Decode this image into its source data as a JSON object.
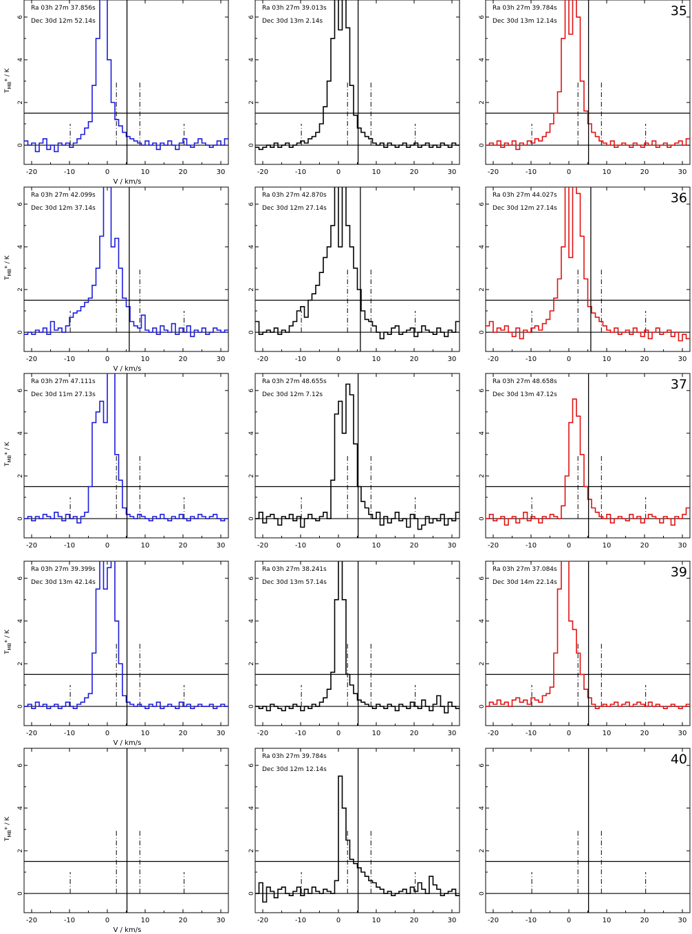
{
  "figure": {
    "x_axis_label": "V / km/s",
    "y_axis_label_main": "T",
    "y_axis_label_sub": "MB",
    "y_axis_label_rest": "* / K"
  },
  "axes_common": {
    "xlim": [
      -22,
      32
    ],
    "ylim": [
      -0.9,
      6.8
    ],
    "xticks": [
      -20,
      -10,
      0,
      10,
      20,
      30
    ],
    "yticks": [
      0,
      2,
      4,
      6
    ],
    "hlines": [
      0,
      1.5
    ],
    "dashdot_tall_x": [
      2.4,
      8.6
    ],
    "dashdot_tall_top": 3.0,
    "dashdot_short_x": [
      -9.8,
      20.3
    ],
    "dashdot_short_top": 1.0
  },
  "colors": {
    "left": "#1a1adc",
    "middle": "#000000",
    "right": "#e01010"
  },
  "chart_data": [
    {
      "type": "line",
      "row": 1,
      "col": 1,
      "row_number": "",
      "ra": "Ra 03h 27m 37.856s",
      "dec": "Dec 30d 12m 52.14s",
      "vline": 5.2,
      "x_start": -22,
      "step": 1,
      "values": [
        0.2,
        0.0,
        0.1,
        -0.3,
        0.1,
        0.3,
        -0.2,
        0.0,
        -0.3,
        0.1,
        0.0,
        0.1,
        -0.1,
        0.1,
        0.3,
        0.5,
        0.8,
        1.1,
        2.8,
        5.0,
        7.0,
        6.9,
        4.0,
        2.0,
        1.2,
        0.9,
        0.6,
        0.4,
        0.3,
        0.2,
        0.1,
        0.0,
        0.2,
        0.0,
        0.1,
        -0.2,
        0.1,
        0.0,
        0.2,
        0.0,
        -0.2,
        0.1,
        0.3,
        0.0,
        -0.1,
        0.1,
        0.3,
        0.1,
        0.0,
        -0.1,
        0.0,
        0.2,
        0.0,
        0.3
      ]
    },
    {
      "type": "line",
      "row": 1,
      "col": 2,
      "row_number": "",
      "ra": "Ra 03h 27m 39.013s",
      "dec": "Dec 30d 13m  2.14s",
      "vline": 5.2,
      "x_start": -22,
      "step": 1,
      "values": [
        -0.1,
        -0.2,
        -0.1,
        0.0,
        -0.1,
        0.1,
        -0.1,
        0.0,
        0.1,
        -0.1,
        0.0,
        0.1,
        0.2,
        0.1,
        0.3,
        0.4,
        0.6,
        1.0,
        1.8,
        3.0,
        5.0,
        7.0,
        5.4,
        8.3,
        5.5,
        2.8,
        1.4,
        0.8,
        0.6,
        0.4,
        0.3,
        0.1,
        0.0,
        0.1,
        -0.1,
        0.1,
        0.0,
        -0.1,
        0.0,
        0.1,
        -0.1,
        0.0,
        0.1,
        -0.1,
        0.0,
        0.1,
        -0.1,
        0.0,
        -0.1,
        0.1,
        0.0,
        -0.1,
        0.1,
        0.0
      ]
    },
    {
      "type": "line",
      "row": 1,
      "col": 3,
      "row_number": "35",
      "ra": "Ra 03h 27m 39.784s",
      "dec": "Dec 30d 13m 12.14s",
      "vline": 5.2,
      "x_start": -22,
      "step": 1,
      "values": [
        0.0,
        0.1,
        0.0,
        0.2,
        -0.1,
        0.1,
        0.0,
        0.2,
        -0.2,
        0.1,
        0.0,
        0.2,
        0.1,
        0.3,
        0.2,
        0.4,
        0.6,
        1.0,
        1.5,
        2.5,
        5.0,
        7.0,
        5.2,
        8.0,
        6.0,
        3.0,
        1.6,
        1.0,
        0.6,
        0.4,
        0.2,
        0.1,
        0.0,
        0.2,
        -0.1,
        0.0,
        0.1,
        0.0,
        -0.1,
        0.1,
        0.0,
        -0.1,
        0.1,
        0.0,
        0.2,
        -0.1,
        0.0,
        0.1,
        -0.1,
        0.0,
        0.1,
        0.2,
        0.0,
        0.3
      ]
    },
    {
      "type": "line",
      "row": 2,
      "col": 1,
      "row_number": "",
      "ra": "Ra 03h 27m 42.099s",
      "dec": "Dec 30d 12m 37.14s",
      "vline": 5.8,
      "x_start": -22,
      "step": 1,
      "values": [
        -0.1,
        0.0,
        -0.1,
        0.1,
        0.0,
        0.2,
        -0.1,
        0.5,
        0.1,
        0.2,
        0.0,
        0.3,
        0.7,
        0.9,
        1.0,
        1.2,
        1.4,
        1.6,
        2.2,
        3.0,
        4.5,
        7.0,
        6.8,
        4.0,
        4.4,
        3.0,
        1.6,
        1.2,
        0.5,
        0.3,
        0.2,
        0.8,
        0.1,
        0.0,
        0.2,
        -0.1,
        0.3,
        0.1,
        0.0,
        0.4,
        -0.1,
        0.2,
        0.0,
        0.3,
        -0.2,
        0.1,
        0.0,
        0.2,
        -0.1,
        0.0,
        0.2,
        0.1,
        0.0,
        0.1
      ]
    },
    {
      "type": "line",
      "row": 2,
      "col": 2,
      "row_number": "",
      "ra": "Ra 03h 27m 42.870s",
      "dec": "Dec 30d 12m 27.14s",
      "vline": 5.8,
      "x_start": -22,
      "step": 1,
      "values": [
        0.5,
        -0.1,
        0.0,
        0.1,
        0.0,
        0.2,
        -0.1,
        0.1,
        0.0,
        0.3,
        0.5,
        1.0,
        1.2,
        0.7,
        1.5,
        1.8,
        2.2,
        2.8,
        3.5,
        4.0,
        5.0,
        7.0,
        4.0,
        7.0,
        5.0,
        4.0,
        3.0,
        2.0,
        1.0,
        0.6,
        0.5,
        0.3,
        0.0,
        -0.3,
        0.0,
        -0.1,
        0.2,
        0.3,
        -0.1,
        0.0,
        0.1,
        0.2,
        -0.2,
        0.0,
        0.3,
        0.1,
        0.0,
        -0.1,
        0.2,
        0.0,
        -0.2,
        0.1,
        0.0,
        0.5
      ]
    },
    {
      "type": "line",
      "row": 2,
      "col": 3,
      "row_number": "36",
      "ra": "Ra 03h 27m 44.027s",
      "dec": "Dec 30d 12m 27.14s",
      "vline": 5.8,
      "x_start": -22,
      "step": 1,
      "values": [
        0.3,
        0.5,
        0.0,
        0.2,
        0.1,
        0.3,
        0.0,
        -0.2,
        0.2,
        -0.3,
        0.1,
        0.0,
        0.2,
        0.3,
        0.1,
        0.4,
        0.6,
        1.0,
        1.6,
        2.5,
        4.0,
        7.0,
        3.5,
        7.0,
        6.5,
        4.5,
        2.5,
        1.2,
        0.9,
        0.7,
        0.5,
        0.3,
        0.1,
        0.0,
        0.2,
        -0.1,
        0.0,
        0.1,
        -0.1,
        0.2,
        0.0,
        -0.2,
        0.1,
        -0.3,
        0.0,
        0.2,
        -0.1,
        0.0,
        0.1,
        -0.2,
        0.0,
        -0.4,
        -0.1,
        -0.3
      ]
    },
    {
      "type": "line",
      "row": 3,
      "col": 1,
      "row_number": "",
      "ra": "Ra 03h 27m 47.111s",
      "dec": "Dec 30d 11m 27.13s",
      "vline": 5.2,
      "x_start": -22,
      "step": 1,
      "values": [
        0.0,
        0.1,
        -0.1,
        0.1,
        0.0,
        0.2,
        0.1,
        0.0,
        0.3,
        0.1,
        -0.1,
        0.2,
        0.0,
        0.1,
        -0.2,
        0.1,
        0.3,
        1.5,
        4.5,
        5.0,
        5.5,
        4.5,
        7.0,
        7.0,
        3.0,
        1.8,
        0.5,
        0.2,
        0.1,
        0.0,
        0.2,
        0.1,
        0.0,
        -0.1,
        0.1,
        0.0,
        0.2,
        0.0,
        -0.1,
        0.1,
        0.0,
        0.2,
        0.0,
        -0.1,
        0.1,
        0.0,
        0.2,
        0.1,
        0.0,
        0.1,
        0.2,
        0.0,
        -0.1,
        0.0
      ]
    },
    {
      "type": "line",
      "row": 3,
      "col": 2,
      "row_number": "",
      "ra": "Ra 03h 27m 48.655s",
      "dec": "Dec 30d 12m  7.12s",
      "vline": 5.2,
      "x_start": -22,
      "step": 1,
      "values": [
        0.0,
        0.3,
        -0.2,
        0.1,
        0.2,
        0.0,
        -0.3,
        0.1,
        0.0,
        0.2,
        -0.1,
        0.1,
        -0.4,
        0.0,
        0.2,
        0.0,
        -0.1,
        0.1,
        0.3,
        0.0,
        1.8,
        4.9,
        5.5,
        4.0,
        6.3,
        5.8,
        3.5,
        1.5,
        0.8,
        0.5,
        0.2,
        0.0,
        0.3,
        -0.3,
        0.1,
        -0.2,
        0.0,
        0.3,
        -0.1,
        0.0,
        -0.4,
        0.2,
        0.0,
        -0.5,
        -0.3,
        0.1,
        -0.2,
        0.0,
        -0.1,
        0.2,
        -0.3,
        0.0,
        -0.1,
        0.3
      ]
    },
    {
      "type": "line",
      "row": 3,
      "col": 3,
      "row_number": "37",
      "ra": "Ra 03h 27m 48.658s",
      "dec": "Dec 30d 13m 47.12s",
      "vline": 5.2,
      "x_start": -22,
      "step": 1,
      "values": [
        0.0,
        0.2,
        -0.1,
        0.0,
        0.1,
        -0.3,
        0.0,
        0.1,
        -0.2,
        0.0,
        0.3,
        -0.1,
        0.1,
        0.0,
        -0.2,
        0.1,
        0.0,
        0.2,
        0.1,
        0.0,
        0.6,
        2.0,
        4.5,
        5.6,
        4.8,
        3.0,
        1.5,
        0.9,
        0.5,
        0.3,
        0.1,
        0.0,
        0.2,
        -0.2,
        0.0,
        0.1,
        0.0,
        -0.1,
        0.2,
        0.0,
        0.1,
        -0.2,
        0.0,
        0.2,
        0.1,
        0.0,
        -0.2,
        0.1,
        0.0,
        -0.3,
        0.1,
        0.0,
        0.2,
        0.5
      ]
    },
    {
      "type": "line",
      "row": 4,
      "col": 1,
      "row_number": "",
      "ra": "Ra 03h 27m 39.399s",
      "dec": "Dec 30d 13m 42.14s",
      "vline": 5.2,
      "x_start": -22,
      "step": 1,
      "values": [
        0.0,
        0.1,
        -0.1,
        0.2,
        0.0,
        0.1,
        -0.1,
        0.0,
        0.1,
        -0.1,
        0.0,
        0.2,
        0.0,
        -0.1,
        0.1,
        0.2,
        0.4,
        0.6,
        2.5,
        5.5,
        7.0,
        5.5,
        6.5,
        8.0,
        4.0,
        2.0,
        0.5,
        0.2,
        0.1,
        0.0,
        0.1,
        0.0,
        -0.1,
        0.1,
        0.0,
        0.2,
        -0.1,
        0.0,
        0.1,
        0.0,
        -0.1,
        0.2,
        0.0,
        0.1,
        -0.1,
        0.0,
        0.1,
        0.0,
        0.0,
        0.1,
        -0.1,
        0.0,
        0.1,
        0.0
      ]
    },
    {
      "type": "line",
      "row": 4,
      "col": 2,
      "row_number": "",
      "ra": "Ra 03h 27m 38.241s",
      "dec": "Dec 30d 13m 57.14s",
      "vline": 5.2,
      "x_start": -22,
      "step": 1,
      "values": [
        0.0,
        -0.1,
        0.0,
        -0.2,
        0.1,
        0.0,
        -0.1,
        -0.2,
        0.0,
        -0.1,
        0.1,
        0.0,
        -0.2,
        0.0,
        -0.1,
        0.1,
        0.0,
        0.2,
        0.4,
        0.8,
        1.6,
        5.0,
        7.0,
        5.0,
        1.5,
        1.0,
        0.6,
        0.3,
        0.2,
        0.1,
        0.0,
        -0.1,
        0.1,
        0.0,
        -0.1,
        0.1,
        0.0,
        -0.2,
        0.1,
        0.0,
        -0.1,
        0.2,
        0.0,
        -0.1,
        0.3,
        0.0,
        -0.2,
        0.1,
        0.5,
        0.0,
        -0.3,
        0.2,
        0.0,
        -0.1
      ]
    },
    {
      "type": "line",
      "row": 4,
      "col": 3,
      "row_number": "39",
      "ra": "Ra 03h 27m 37.084s",
      "dec": "Dec 30d 14m 22.14s",
      "vline": 5.2,
      "x_start": -22,
      "step": 1,
      "values": [
        0.0,
        0.2,
        0.1,
        0.3,
        0.1,
        0.2,
        0.0,
        0.3,
        0.4,
        0.2,
        0.3,
        0.1,
        0.4,
        0.3,
        0.2,
        0.5,
        0.6,
        0.9,
        2.5,
        5.5,
        7.0,
        7.0,
        4.0,
        3.6,
        2.5,
        1.5,
        0.8,
        0.4,
        0.1,
        -0.1,
        0.0,
        0.1,
        0.0,
        0.1,
        0.2,
        0.0,
        0.1,
        0.2,
        0.0,
        0.1,
        0.2,
        0.1,
        0.0,
        0.2,
        0.0,
        0.1,
        0.0,
        -0.1,
        0.0,
        0.1,
        0.0,
        -0.1,
        0.0,
        0.1
      ]
    },
    {
      "type": "line",
      "row": 5,
      "col": 1,
      "row_number": "",
      "ra": "",
      "dec": "",
      "vline": 5.2,
      "x_start": -22,
      "step": 1,
      "values": []
    },
    {
      "type": "line",
      "row": 5,
      "col": 2,
      "row_number": "",
      "ra": "Ra 03h 27m 39.784s",
      "dec": "Dec 30d 12m 12.14s",
      "vline": 5.2,
      "x_start": -22,
      "step": 1,
      "values": [
        0.0,
        0.5,
        -0.4,
        0.3,
        0.1,
        -0.2,
        0.2,
        0.3,
        0.0,
        -0.1,
        0.1,
        0.3,
        -0.1,
        0.2,
        0.0,
        0.3,
        0.1,
        0.0,
        0.2,
        0.1,
        0.0,
        0.6,
        5.5,
        4.0,
        2.5,
        1.6,
        1.4,
        1.2,
        1.0,
        0.8,
        0.6,
        0.5,
        0.3,
        0.2,
        0.0,
        0.1,
        -0.1,
        0.0,
        0.1,
        0.2,
        0.0,
        0.3,
        0.1,
        0.5,
        0.2,
        0.0,
        0.8,
        0.4,
        0.2,
        -0.1,
        0.0,
        0.1,
        0.2,
        -0.1
      ]
    },
    {
      "type": "line",
      "row": 5,
      "col": 3,
      "row_number": "40",
      "ra": "",
      "dec": "",
      "vline": 5.2,
      "x_start": -22,
      "step": 1,
      "values": []
    }
  ]
}
